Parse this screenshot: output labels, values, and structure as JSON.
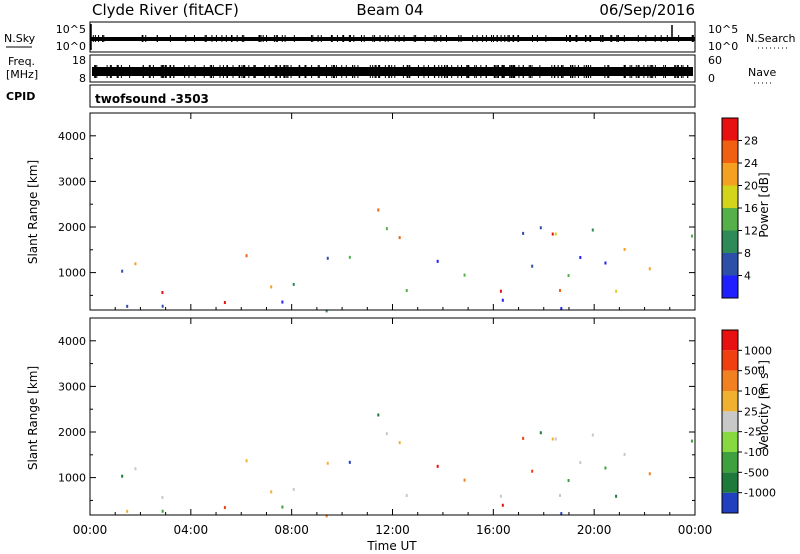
{
  "header": {
    "station": "Clyde River (fitACF)",
    "beam": "Beam 04",
    "date": "06/Sep/2016"
  },
  "nsky_panel": {
    "left_label": "N.Sky",
    "left_ticks": [
      "10^5",
      "10^0"
    ],
    "right_label": "N.Search",
    "right_ticks": [
      "10^5",
      "10^0"
    ]
  },
  "freq_panel": {
    "left_label_line1": "Freq.",
    "left_label_line2": "[MHz]",
    "left_ticks": [
      "18",
      "8"
    ],
    "right_label": "Nave",
    "right_ticks": [
      "60",
      "0"
    ]
  },
  "cpid_panel": {
    "label": "CPID",
    "value": "twofsound -3503"
  },
  "chart_data": [
    {
      "type": "heatmap",
      "name": "power",
      "ylabel": "Slant Range [km]",
      "yticks": [
        "1000",
        "2000",
        "3000",
        "4000"
      ],
      "yticks_values": [
        1000,
        2000,
        3000,
        4000
      ],
      "ylim": [
        180,
        4500
      ],
      "xlim_hours": [
        0,
        24
      ],
      "colorbar": {
        "label": "Power [dB]",
        "ticks": [
          "4",
          "8",
          "12",
          "16",
          "20",
          "24",
          "28"
        ],
        "colors": [
          "#1f1fff",
          "#2c4faa",
          "#2e8a57",
          "#55b04a",
          "#d4d41a",
          "#f4a020",
          "#f06010",
          "#e81010"
        ]
      }
    },
    {
      "type": "heatmap",
      "name": "velocity",
      "ylabel": "Slant Range [km]",
      "yticks": [
        "1000",
        "2000",
        "3000",
        "4000"
      ],
      "yticks_values": [
        1000,
        2000,
        3000,
        4000
      ],
      "ylim": [
        180,
        4500
      ],
      "xlim_hours": [
        0,
        24
      ],
      "colorbar": {
        "label": "Velocity",
        "unit": "[m s",
        "unit_sup": "-1",
        "unit_end": "]",
        "ticks": [
          "1000",
          "500",
          "100",
          "25",
          "-25",
          "-100",
          "-500",
          "-1000"
        ],
        "colors": [
          "#2040c0",
          "#1e7a3a",
          "#3fa040",
          "#88d840",
          "#c8c8c8",
          "#f0b030",
          "#f08020",
          "#f04010",
          "#e81010"
        ]
      }
    }
  ],
  "xaxis": {
    "label": "Time UT",
    "ticks": [
      "00:00",
      "04:00",
      "08:00",
      "12:00",
      "16:00",
      "20:00",
      "00:00"
    ],
    "tick_hours": [
      0,
      4,
      8,
      12,
      16,
      20,
      24
    ]
  }
}
